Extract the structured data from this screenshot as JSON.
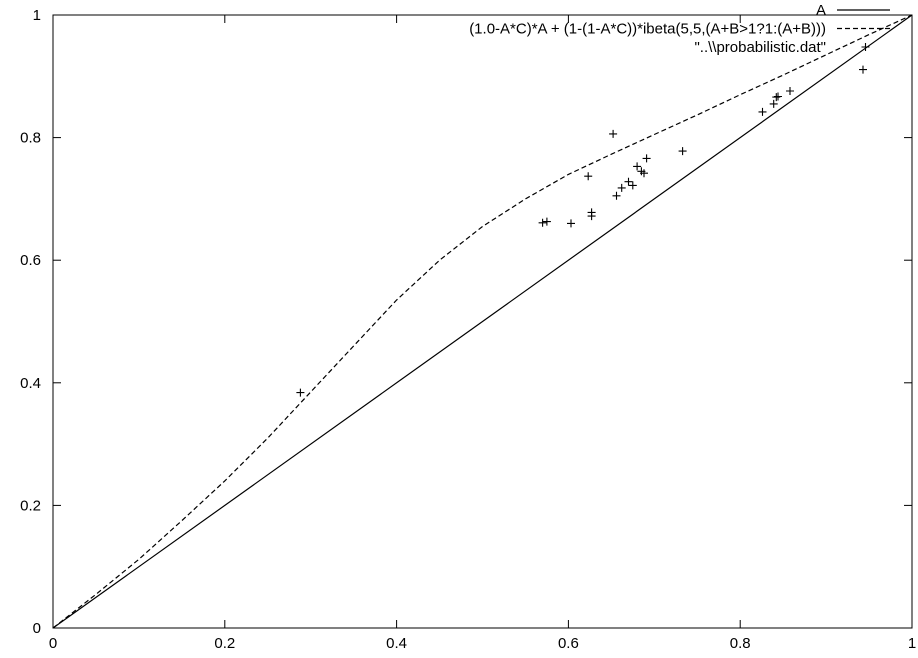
{
  "chart_data": {
    "type": "line",
    "title": "",
    "xlabel": "",
    "ylabel": "",
    "xlim": [
      0,
      1
    ],
    "ylim": [
      0,
      1
    ],
    "x_ticks": [
      0,
      0.2,
      0.4,
      0.6,
      0.8,
      1
    ],
    "y_ticks": [
      0,
      0.2,
      0.4,
      0.6,
      0.8,
      1
    ],
    "x_tick_labels": [
      "0",
      "0.2",
      "0.4",
      "0.6",
      "0.8",
      "1"
    ],
    "y_tick_labels": [
      "0",
      "0.2",
      "0.4",
      "0.6",
      "0.8",
      "1"
    ],
    "grid": false,
    "legend_position": "top-right",
    "series": [
      {
        "name": "A",
        "type": "line",
        "style": "solid",
        "x": [
          0,
          1
        ],
        "y": [
          0,
          1
        ]
      },
      {
        "name": "(1.0-A*C)*A + (1-(1-A*C))*ibeta(5,5,(A+B>1?1:(A+B)))",
        "type": "line",
        "style": "dashed",
        "x": [
          0,
          0.05,
          0.1,
          0.15,
          0.2,
          0.25,
          0.3,
          0.35,
          0.4,
          0.45,
          0.5,
          0.55,
          0.6,
          0.65,
          0.7,
          0.75,
          0.8,
          0.85,
          0.9,
          0.95,
          1
        ],
        "y": [
          0,
          0.055,
          0.112,
          0.175,
          0.24,
          0.31,
          0.385,
          0.46,
          0.535,
          0.6,
          0.655,
          0.7,
          0.74,
          0.773,
          0.805,
          0.837,
          0.87,
          0.902,
          0.935,
          0.968,
          1
        ]
      },
      {
        "name": "\"..\\\\probabilistic.dat\"",
        "type": "scatter",
        "marker": "+",
        "x": [
          0.288,
          0.57,
          0.575,
          0.603,
          0.623,
          0.627,
          0.627,
          0.652,
          0.656,
          0.662,
          0.67,
          0.675,
          0.68,
          0.685,
          0.688,
          0.691,
          0.733,
          0.826,
          0.839,
          0.842,
          0.844,
          0.858,
          0.943
        ],
        "y": [
          0.384,
          0.661,
          0.663,
          0.66,
          0.737,
          0.672,
          0.678,
          0.806,
          0.705,
          0.718,
          0.728,
          0.722,
          0.753,
          0.745,
          0.742,
          0.766,
          0.778,
          0.842,
          0.855,
          0.866,
          0.867,
          0.876,
          0.911
        ]
      }
    ]
  }
}
